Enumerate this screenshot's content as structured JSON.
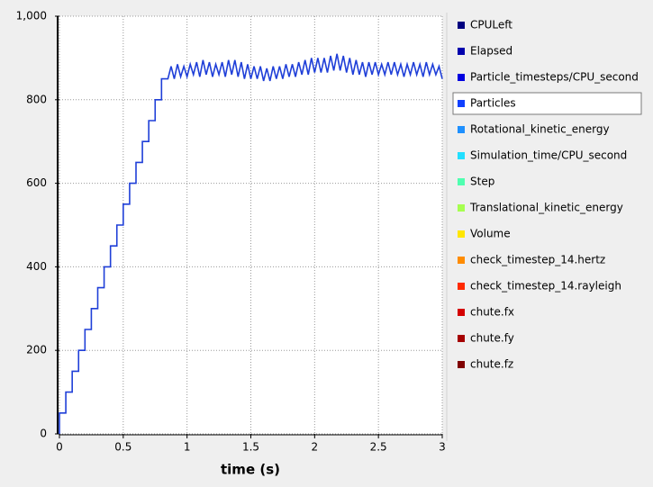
{
  "chart_data": {
    "type": "line",
    "x_label": "time (s)",
    "xlim": [
      0,
      3
    ],
    "xticks": [
      0,
      0.5,
      1,
      1.5,
      2,
      2.5,
      3
    ],
    "ylim": [
      0,
      1000
    ],
    "yticks": [
      0,
      200,
      400,
      600,
      800,
      {
        "value": 1000,
        "label": "1,000"
      }
    ],
    "grid": true,
    "series": [
      {
        "name": "Particles",
        "color": "#1f3fd8",
        "x": [
          0,
          0,
          0.05,
          0.05,
          0.1,
          0.1,
          0.15,
          0.15,
          0.2,
          0.2,
          0.25,
          0.25,
          0.3,
          0.3,
          0.35,
          0.35,
          0.4,
          0.4,
          0.45,
          0.45,
          0.5,
          0.5,
          0.55,
          0.55,
          0.6,
          0.6,
          0.65,
          0.65,
          0.7,
          0.7,
          0.75,
          0.75,
          0.8,
          0.8,
          0.85,
          0.875,
          0.9,
          0.925,
          0.95,
          0.975,
          1.0,
          1.025,
          1.05,
          1.075,
          1.1,
          1.125,
          1.15,
          1.175,
          1.2,
          1.225,
          1.25,
          1.275,
          1.3,
          1.325,
          1.35,
          1.375,
          1.4,
          1.425,
          1.45,
          1.475,
          1.5,
          1.525,
          1.55,
          1.575,
          1.6,
          1.625,
          1.65,
          1.675,
          1.7,
          1.725,
          1.75,
          1.775,
          1.8,
          1.825,
          1.85,
          1.875,
          1.9,
          1.925,
          1.95,
          1.975,
          2.0,
          2.025,
          2.05,
          2.075,
          2.1,
          2.125,
          2.15,
          2.175,
          2.2,
          2.225,
          2.25,
          2.275,
          2.3,
          2.325,
          2.35,
          2.375,
          2.4,
          2.425,
          2.45,
          2.475,
          2.5,
          2.525,
          2.55,
          2.575,
          2.6,
          2.625,
          2.65,
          2.675,
          2.7,
          2.725,
          2.75,
          2.775,
          2.8,
          2.825,
          2.85,
          2.875,
          2.9,
          2.925,
          2.95,
          2.975,
          3.0
        ],
        "values": [
          0,
          50,
          50,
          100,
          100,
          150,
          150,
          200,
          200,
          250,
          250,
          300,
          300,
          350,
          350,
          400,
          400,
          450,
          450,
          500,
          500,
          550,
          550,
          600,
          600,
          650,
          650,
          700,
          700,
          750,
          750,
          800,
          800,
          850,
          850,
          880,
          850,
          885,
          855,
          880,
          855,
          885,
          860,
          890,
          855,
          895,
          860,
          890,
          855,
          885,
          860,
          890,
          855,
          895,
          860,
          895,
          855,
          890,
          850,
          885,
          850,
          880,
          850,
          880,
          845,
          875,
          845,
          880,
          850,
          880,
          850,
          885,
          855,
          885,
          855,
          890,
          860,
          895,
          860,
          900,
          865,
          900,
          865,
          900,
          865,
          905,
          870,
          910,
          870,
          905,
          865,
          900,
          860,
          895,
          860,
          890,
          855,
          890,
          860,
          890,
          860,
          885,
          860,
          890,
          860,
          890,
          860,
          885,
          855,
          885,
          860,
          890,
          860,
          885,
          855,
          890,
          860,
          885,
          860,
          880,
          850
        ]
      }
    ],
    "legend_items": [
      {
        "name": "CPULeft",
        "color": "#00007f"
      },
      {
        "name": "Elapsed",
        "color": "#0000ad"
      },
      {
        "name": "Particle_timesteps/CPU_second",
        "color": "#0000e0"
      },
      {
        "name": "Particles",
        "color": "#1040ff",
        "selected": true
      },
      {
        "name": "Rotational_kinetic_energy",
        "color": "#1e90ff"
      },
      {
        "name": "Simulation_time/CPU_second",
        "color": "#22dfff"
      },
      {
        "name": "Step",
        "color": "#4fffb0"
      },
      {
        "name": "Translational_kinetic_energy",
        "color": "#a6ff50"
      },
      {
        "name": "Volume",
        "color": "#ffe600"
      },
      {
        "name": "check_timestep_14.hertz",
        "color": "#ff8c00"
      },
      {
        "name": "check_timestep_14.rayleigh",
        "color": "#ff2a00"
      },
      {
        "name": "chute.fx",
        "color": "#d40000"
      },
      {
        "name": "chute.fy",
        "color": "#a50000"
      },
      {
        "name": "chute.fz",
        "color": "#7f0000"
      }
    ]
  }
}
